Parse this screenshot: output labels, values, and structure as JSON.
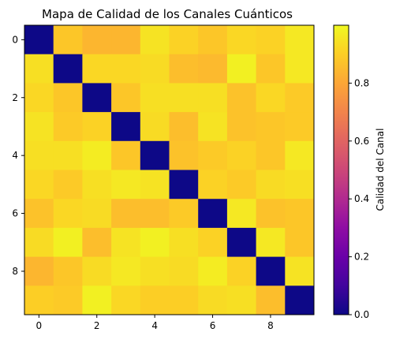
{
  "chart_data": {
    "type": "heatmap",
    "title": "Mapa de Calidad de los Canales Cuánticos",
    "xlabel": "",
    "ylabel": "",
    "colorbar_label": "Calidad del Canal",
    "colormap": "plasma",
    "vmin": 0.0,
    "vmax": 1.0,
    "x_ticks": [
      0,
      2,
      4,
      6,
      8
    ],
    "y_ticks": [
      0,
      2,
      4,
      6,
      8
    ],
    "colorbar_ticks": [
      "0.0",
      "0.2",
      "0.4",
      "0.6",
      "0.8"
    ],
    "colorbar_tick_values": [
      0.0,
      0.2,
      0.4,
      0.6,
      0.8
    ],
    "rows": 10,
    "cols": 10,
    "values": [
      [
        0.0,
        0.88,
        0.84,
        0.84,
        0.95,
        0.91,
        0.88,
        0.92,
        0.91,
        0.96
      ],
      [
        0.94,
        0.0,
        0.92,
        0.92,
        0.93,
        0.86,
        0.85,
        0.98,
        0.88,
        0.96
      ],
      [
        0.92,
        0.88,
        0.0,
        0.88,
        0.94,
        0.94,
        0.94,
        0.87,
        0.92,
        0.89
      ],
      [
        0.95,
        0.89,
        0.91,
        0.0,
        0.93,
        0.86,
        0.95,
        0.87,
        0.88,
        0.89
      ],
      [
        0.94,
        0.94,
        0.97,
        0.88,
        0.0,
        0.87,
        0.89,
        0.91,
        0.88,
        0.96
      ],
      [
        0.92,
        0.89,
        0.94,
        0.96,
        0.95,
        0.0,
        0.91,
        0.89,
        0.93,
        0.94
      ],
      [
        0.87,
        0.92,
        0.93,
        0.86,
        0.86,
        0.89,
        0.0,
        0.96,
        0.87,
        0.88
      ],
      [
        0.93,
        0.98,
        0.86,
        0.95,
        0.98,
        0.94,
        0.91,
        0.0,
        0.96,
        0.88
      ],
      [
        0.84,
        0.88,
        0.93,
        0.96,
        0.94,
        0.93,
        0.97,
        0.91,
        0.0,
        0.95
      ],
      [
        0.9,
        0.89,
        0.98,
        0.92,
        0.9,
        0.9,
        0.93,
        0.94,
        0.86,
        0.0
      ]
    ]
  }
}
